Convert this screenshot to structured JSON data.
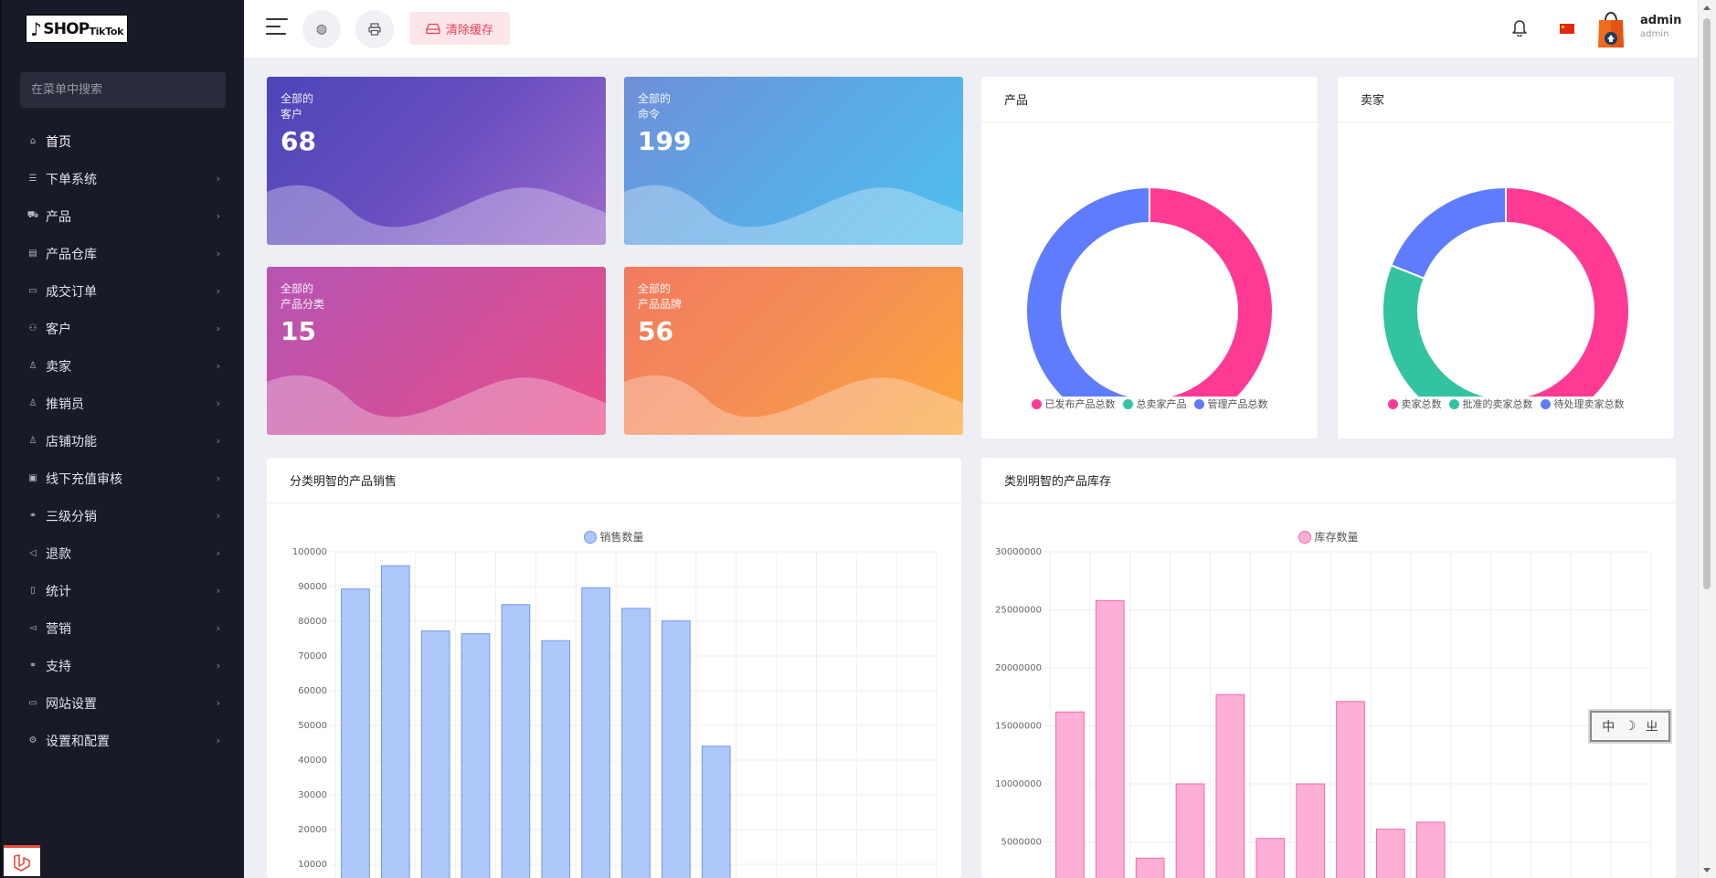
{
  "brand": {
    "logo_main": "SHOP",
    "logo_sub": "TikTok",
    "logo_icon": "tiktok-note-icon"
  },
  "sidebar": {
    "search_placeholder": "在菜单中搜索",
    "items": [
      {
        "label": "首页",
        "icon": "home-icon",
        "has_children": false
      },
      {
        "label": "下单系统",
        "icon": "list-icon",
        "has_children": true
      },
      {
        "label": "产品",
        "icon": "cart-icon",
        "has_children": true
      },
      {
        "label": "产品仓库",
        "icon": "warehouse-icon",
        "has_children": true
      },
      {
        "label": "成交订单",
        "icon": "card-icon",
        "has_children": true
      },
      {
        "label": "客户",
        "icon": "users-icon",
        "has_children": true
      },
      {
        "label": "卖家",
        "icon": "user-icon",
        "has_children": true
      },
      {
        "label": "推销员",
        "icon": "user-icon",
        "has_children": true
      },
      {
        "label": "店铺功能",
        "icon": "user-icon",
        "has_children": true
      },
      {
        "label": "线下充值审核",
        "icon": "money-icon",
        "has_children": true
      },
      {
        "label": "三级分销",
        "icon": "link-icon",
        "has_children": true
      },
      {
        "label": "退款",
        "icon": "rewind-icon",
        "has_children": true
      },
      {
        "label": "统计",
        "icon": "file-icon",
        "has_children": true
      },
      {
        "label": "营销",
        "icon": "megaphone-icon",
        "has_children": true
      },
      {
        "label": "支持",
        "icon": "link-icon",
        "has_children": true
      },
      {
        "label": "网站设置",
        "icon": "monitor-icon",
        "has_children": true
      },
      {
        "label": "设置和配置",
        "icon": "gear-icon",
        "has_children": true
      }
    ]
  },
  "topbar": {
    "clear_cache_label": "清除缓存",
    "user_name": "admin",
    "user_role": "admin"
  },
  "stats": [
    {
      "line1": "全部的",
      "line2": "客户",
      "value": "68"
    },
    {
      "line1": "全部的",
      "line2": "命令",
      "value": "199"
    },
    {
      "line1": "全部的",
      "line2": "产品分类",
      "value": "15"
    },
    {
      "line1": "全部的",
      "line2": "产品品牌",
      "value": "56"
    }
  ],
  "cards": {
    "products_title": "产品",
    "sellers_title": "卖家",
    "sales_title": "分类明智的产品销售",
    "stock_title": "类别明智的产品库存"
  },
  "colors": {
    "pink": "#ff3a94",
    "green": "#34c3a0",
    "blue": "#5f7cff",
    "bar_blue": "#aec8fb",
    "bar_blue_stroke": "#6f99ec",
    "bar_pink": "#fdafd6",
    "bar_pink_stroke": "#f26aaa"
  },
  "chart_data": [
    {
      "type": "pie",
      "title": "产品",
      "donut": true,
      "legend": "bottom",
      "labels": [
        "已发布产品总数",
        "总卖家产品",
        "管理产品总数"
      ],
      "values": [
        48,
        3,
        49
      ],
      "colors": [
        "#ff3a94",
        "#34c3a0",
        "#5f7cff"
      ]
    },
    {
      "type": "pie",
      "title": "卖家",
      "donut": true,
      "legend": "bottom",
      "labels": [
        "卖家总数",
        "批准的卖家总数",
        "待处理卖家总数"
      ],
      "values": [
        50,
        31,
        19
      ],
      "colors": [
        "#ff3a94",
        "#34c3a0",
        "#5f7cff"
      ]
    },
    {
      "type": "bar",
      "title": "分类明智的产品销售",
      "series_name": "销售数量",
      "legend": "top",
      "grid": true,
      "ylim": [
        0,
        100000
      ],
      "y_ticks": [
        "100000",
        "90000",
        "80000",
        "70000",
        "60000",
        "50000",
        "40000",
        "30000",
        "20000",
        "10000"
      ],
      "num_slots": 15,
      "values": [
        89300,
        96000,
        77200,
        76400,
        84800,
        74400,
        89600,
        83700,
        80100,
        44000
      ]
    },
    {
      "type": "bar",
      "title": "类别明智的产品库存",
      "series_name": "库存数量",
      "legend": "top",
      "grid": true,
      "ylim": [
        0,
        30000000
      ],
      "y_ticks": [
        "30000000",
        "25000000",
        "20000000",
        "15000000",
        "10000000",
        "5000000"
      ],
      "num_slots": 15,
      "values": [
        16200000,
        25800000,
        3600000,
        10000000,
        17700000,
        5300000,
        10000000,
        17100000,
        6100000,
        6700000
      ]
    }
  ],
  "ime_widget": {
    "label": "中"
  }
}
